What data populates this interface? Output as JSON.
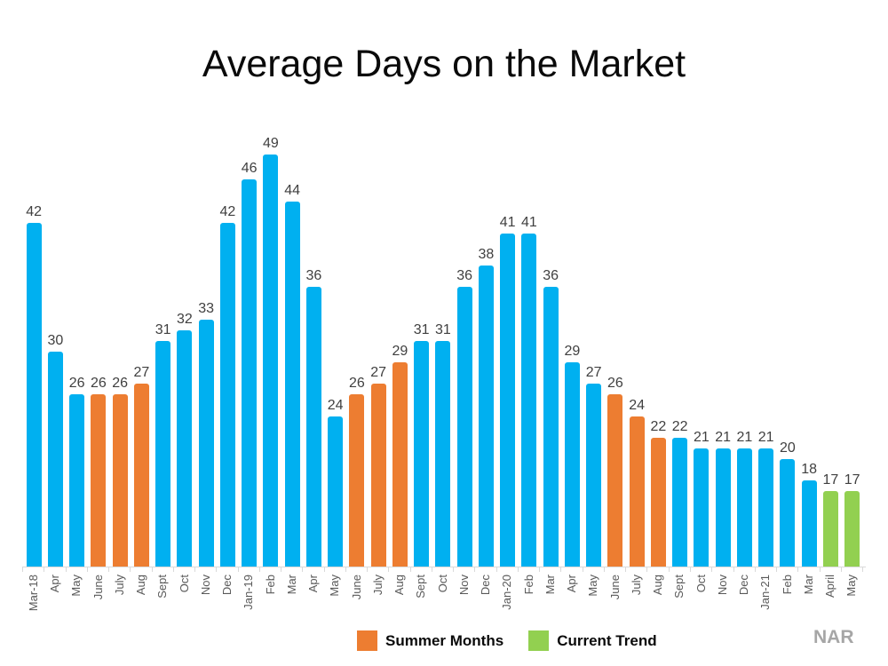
{
  "chart_data": {
    "type": "bar",
    "title": "Average Days on the Market",
    "xlabel": "",
    "ylabel": "",
    "ylim": [
      10,
      50
    ],
    "grid": false,
    "legend_position": "bottom",
    "categories": [
      "Mar-18",
      "Apr",
      "May",
      "June",
      "July",
      "Aug",
      "Sept",
      "Oct",
      "Nov",
      "Dec",
      "Jan-19",
      "Feb",
      "Mar",
      "Apr",
      "May",
      "June",
      "July",
      "Aug",
      "Sept",
      "Oct",
      "Nov",
      "Dec",
      "Jan-20",
      "Feb",
      "Mar",
      "Apr",
      "May",
      "June",
      "July",
      "Aug",
      "Sept",
      "Oct",
      "Nov",
      "Dec",
      "Jan-21",
      "Feb",
      "Mar",
      "April",
      "May"
    ],
    "values": [
      42,
      30,
      26,
      26,
      26,
      27,
      31,
      32,
      33,
      42,
      46,
      49,
      44,
      36,
      24,
      26,
      27,
      29,
      31,
      31,
      36,
      38,
      41,
      41,
      36,
      29,
      27,
      26,
      24,
      22,
      22,
      21,
      21,
      21,
      21,
      20,
      18,
      17,
      17
    ],
    "bar_types": [
      "default",
      "default",
      "default",
      "summer",
      "summer",
      "summer",
      "default",
      "default",
      "default",
      "default",
      "default",
      "default",
      "default",
      "default",
      "default",
      "summer",
      "summer",
      "summer",
      "default",
      "default",
      "default",
      "default",
      "default",
      "default",
      "default",
      "default",
      "default",
      "summer",
      "summer",
      "summer",
      "default",
      "default",
      "default",
      "default",
      "default",
      "default",
      "default",
      "trend",
      "trend"
    ],
    "colors": {
      "default": "#00B0F0",
      "summer": "#ED7D31",
      "trend": "#92D050",
      "value_label": "#404040",
      "axis_label": "#595959",
      "axis_line": "#d9d9d9",
      "source": "#a6a6a6"
    },
    "legend": [
      {
        "label": "Summer Months",
        "type": "summer"
      },
      {
        "label": "Current Trend",
        "type": "trend"
      }
    ],
    "source": "NAR"
  }
}
